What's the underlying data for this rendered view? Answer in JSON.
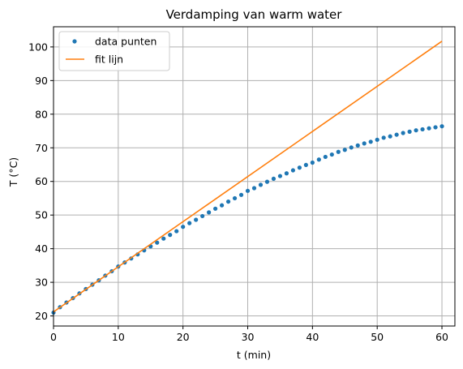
{
  "chart_data": {
    "type": "scatter",
    "title": "Verdamping van warm water",
    "xlabel": "t (min)",
    "ylabel": "T (°C)",
    "xlim": [
      0,
      62
    ],
    "ylim": [
      17,
      106
    ],
    "xticks": [
      0,
      10,
      20,
      30,
      40,
      50,
      60
    ],
    "yticks": [
      20,
      30,
      40,
      50,
      60,
      70,
      80,
      90,
      100
    ],
    "grid": true,
    "legend_position": "top-left",
    "series": [
      {
        "name": "data punten",
        "kind": "points",
        "color": "#1f77b4",
        "x": [
          0,
          1,
          2,
          3,
          4,
          5,
          6,
          7,
          8,
          9,
          10,
          11,
          12,
          13,
          14,
          15,
          16,
          17,
          18,
          19,
          20,
          21,
          22,
          23,
          24,
          25,
          26,
          27,
          28,
          29,
          30,
          31,
          32,
          33,
          34,
          35,
          36,
          37,
          38,
          39,
          40,
          41,
          42,
          43,
          44,
          45,
          46,
          47,
          48,
          49,
          50,
          51,
          52,
          53,
          54,
          55,
          56,
          57,
          58,
          59,
          60
        ],
        "y": [
          21.0,
          22.6,
          24.0,
          25.3,
          26.7,
          28.0,
          29.3,
          30.6,
          32.0,
          33.3,
          34.7,
          35.9,
          37.1,
          38.3,
          39.5,
          40.7,
          41.8,
          43.0,
          44.1,
          45.2,
          46.5,
          47.6,
          48.6,
          49.7,
          50.8,
          51.9,
          52.9,
          54.0,
          55.0,
          56.0,
          57.2,
          58.0,
          59.0,
          59.9,
          60.8,
          61.6,
          62.4,
          63.3,
          64.1,
          64.9,
          65.6,
          66.5,
          67.3,
          68.0,
          68.8,
          69.4,
          70.1,
          70.7,
          71.3,
          71.8,
          72.4,
          73.0,
          73.4,
          73.9,
          74.4,
          74.8,
          75.2,
          75.5,
          75.8,
          76.1,
          76.4
        ]
      },
      {
        "name": "fit lijn",
        "kind": "line",
        "color": "#ff7f0e",
        "x": [
          0,
          60
        ],
        "y": [
          21.2,
          101.7
        ]
      }
    ]
  }
}
